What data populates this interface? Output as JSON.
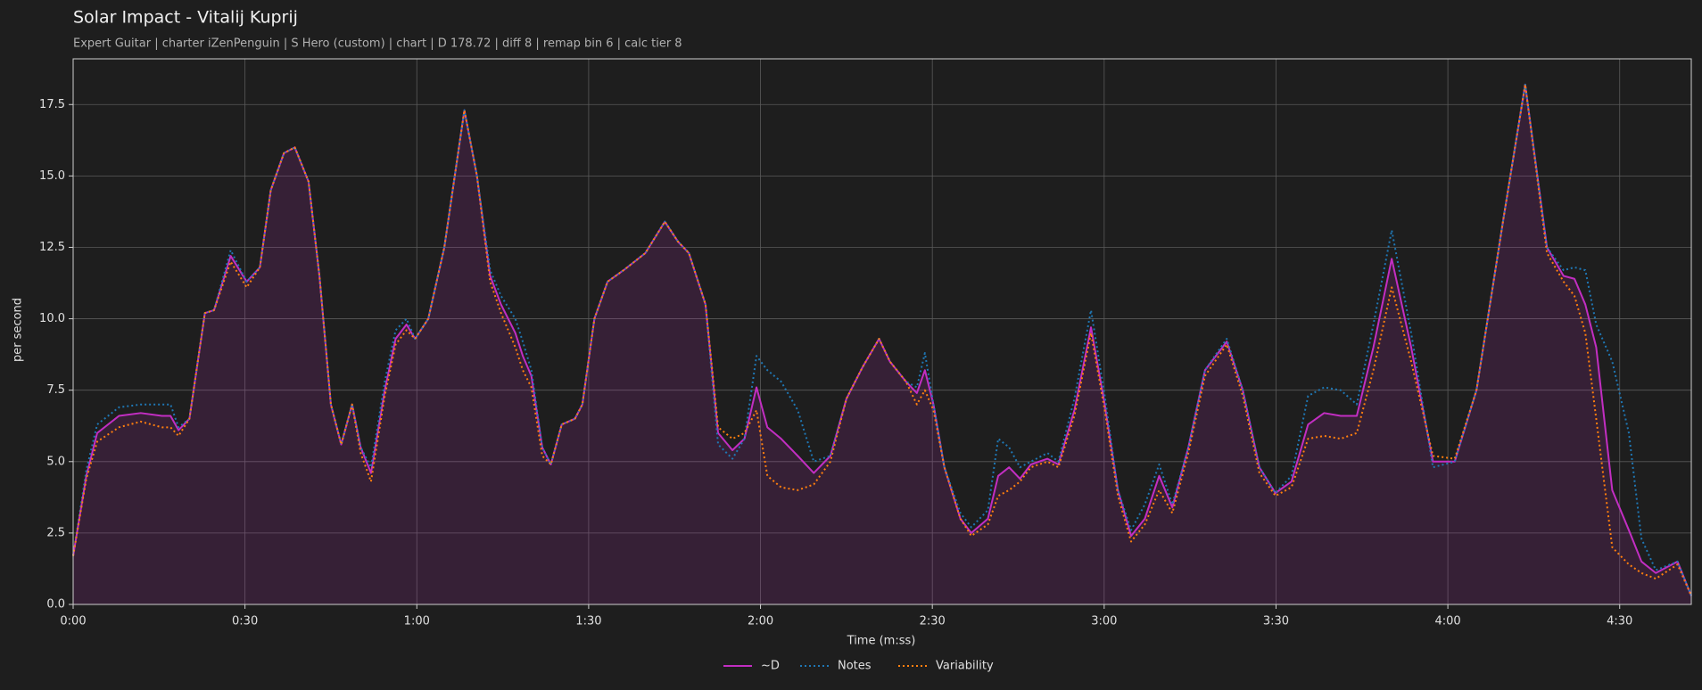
{
  "chart_data": {
    "type": "line",
    "title": "Solar Impact - Vitalij Kuprij",
    "subtitle": "Expert Guitar  |  charter iZenPenguin  |  S Hero (custom)  |  chart  |  D 178.72  |  diff 8  |  remap bin 6  |  calc tier 8",
    "x_label": "Time (m:ss)",
    "y_label": "per second",
    "grid": true,
    "legend": "bottom",
    "xlim": [
      0,
      282.5
    ],
    "ylim": [
      0,
      19.1
    ],
    "xticks": [
      {
        "value": 0,
        "label": "0:00"
      },
      {
        "value": 30,
        "label": "0:30"
      },
      {
        "value": 60,
        "label": "1:00"
      },
      {
        "value": 90,
        "label": "1:30"
      },
      {
        "value": 120,
        "label": "2:00"
      },
      {
        "value": 150,
        "label": "2:30"
      },
      {
        "value": 180,
        "label": "3:00"
      },
      {
        "value": 210,
        "label": "3:30"
      },
      {
        "value": 240,
        "label": "4:00"
      },
      {
        "value": 270,
        "label": "4:30"
      }
    ],
    "yticks": [
      {
        "value": 0,
        "label": "0.0"
      },
      2.5,
      {
        "value": 5,
        "label": "5.0"
      },
      7.5,
      {
        "value": 10,
        "label": "10.0"
      },
      12.5,
      {
        "value": 15,
        "label": "15.0"
      },
      17.5
    ],
    "x": [
      0,
      2.3,
      4.2,
      8,
      11.8,
      15.5,
      17,
      18.4,
      20.3,
      23,
      24.6,
      27.5,
      30.3,
      32.6,
      34.5,
      36.8,
      38.7,
      41.1,
      43,
      45,
      46.8,
      48.7,
      50.2,
      52,
      54.4,
      56.3,
      58.2,
      59.7,
      62,
      64.8,
      68.3,
      70.5,
      72.8,
      74.7,
      77.2,
      78.5,
      80,
      81.9,
      83.4,
      85.3,
      87.6,
      88.9,
      91,
      93.3,
      96.1,
      99.9,
      103.3,
      105.6,
      107.5,
      110.4,
      112.6,
      115.1,
      117.2,
      119.3,
      121.2,
      123.6,
      126.5,
      129.3,
      132.2,
      135,
      137.8,
      140.7,
      142.6,
      145.4,
      147.3,
      148.7,
      150.2,
      152.1,
      154.9,
      156.8,
      159.7,
      161.5,
      163.4,
      165.3,
      167.2,
      170.1,
      172,
      174.8,
      177.7,
      180.1,
      182.4,
      184.7,
      187.1,
      189.6,
      191.9,
      194.7,
      197.6,
      201.4,
      204.2,
      207.1,
      209.9,
      212.7,
      215.6,
      218.4,
      221.3,
      224.1,
      227,
      230.2,
      233.6,
      237.4,
      241.2,
      245,
      249.7,
      253.5,
      257.3,
      260.2,
      262.1,
      264,
      265.9,
      268.7,
      271.6,
      273.8,
      276.3,
      280.1,
      282.5
    ],
    "series": [
      {
        "name": "~D",
        "color": "#c22ec2",
        "style": "solid",
        "fill": true,
        "values": [
          1.7,
          4.5,
          6.0,
          6.6,
          6.7,
          6.6,
          6.6,
          6.1,
          6.5,
          10.2,
          10.3,
          12.2,
          11.3,
          11.8,
          14.5,
          15.8,
          16.0,
          14.8,
          11.5,
          7.0,
          5.6,
          7.0,
          5.5,
          4.6,
          7.5,
          9.3,
          9.8,
          9.3,
          10.0,
          12.5,
          17.3,
          15.0,
          11.5,
          10.5,
          9.5,
          8.7,
          8.0,
          5.5,
          4.9,
          6.3,
          6.5,
          7.0,
          10.0,
          11.3,
          11.7,
          12.3,
          13.4,
          12.7,
          12.3,
          10.5,
          6.0,
          5.4,
          5.8,
          7.6,
          6.2,
          5.8,
          5.2,
          4.6,
          5.2,
          7.2,
          8.3,
          9.3,
          8.5,
          7.8,
          7.4,
          8.2,
          7.0,
          4.8,
          3.0,
          2.5,
          3.0,
          4.5,
          4.8,
          4.4,
          4.9,
          5.1,
          4.9,
          6.8,
          9.7,
          7.0,
          4.0,
          2.4,
          3.0,
          4.5,
          3.4,
          5.5,
          8.2,
          9.2,
          7.5,
          4.8,
          3.9,
          4.3,
          6.3,
          6.7,
          6.6,
          6.6,
          9.0,
          12.1,
          9.0,
          5.0,
          5.0,
          7.5,
          13.5,
          18.2,
          12.5,
          11.5,
          11.4,
          10.5,
          9.0,
          4.0,
          2.6,
          1.5,
          1.1,
          1.5,
          0.3
        ]
      },
      {
        "name": "Notes",
        "color": "#1f77b4",
        "style": "dotted",
        "values": [
          1.7,
          4.7,
          6.3,
          6.9,
          7.0,
          7.0,
          7.0,
          6.2,
          6.5,
          10.2,
          10.3,
          12.4,
          11.3,
          11.8,
          14.5,
          15.8,
          16.0,
          14.8,
          11.5,
          7.0,
          5.6,
          7.0,
          5.5,
          4.8,
          7.8,
          9.6,
          10.0,
          9.3,
          10.0,
          12.5,
          17.3,
          15.0,
          11.7,
          10.8,
          10.0,
          9.2,
          8.2,
          5.5,
          4.9,
          6.3,
          6.5,
          7.0,
          10.0,
          11.3,
          11.7,
          12.3,
          13.4,
          12.7,
          12.3,
          10.5,
          5.6,
          5.1,
          5.8,
          8.7,
          8.2,
          7.8,
          6.8,
          5.0,
          5.2,
          7.2,
          8.3,
          9.3,
          8.5,
          7.8,
          7.6,
          8.8,
          7.0,
          4.8,
          3.2,
          2.7,
          3.3,
          5.8,
          5.5,
          4.8,
          5.0,
          5.3,
          5.0,
          7.2,
          10.3,
          7.3,
          4.0,
          2.6,
          3.5,
          4.9,
          3.5,
          5.5,
          8.2,
          9.3,
          7.5,
          4.8,
          3.9,
          4.5,
          7.3,
          7.6,
          7.5,
          7.0,
          9.8,
          13.1,
          9.5,
          4.8,
          5.0,
          7.5,
          13.5,
          18.2,
          12.5,
          11.7,
          11.8,
          11.7,
          9.8,
          8.5,
          6.0,
          2.3,
          1.2,
          1.5,
          0.3
        ]
      },
      {
        "name": "Variability",
        "color": "#ff7f0e",
        "style": "dotted",
        "values": [
          1.7,
          4.4,
          5.7,
          6.2,
          6.4,
          6.2,
          6.2,
          5.9,
          6.5,
          10.2,
          10.3,
          12.0,
          11.1,
          11.8,
          14.5,
          15.8,
          16.0,
          14.8,
          11.5,
          7.0,
          5.6,
          7.0,
          5.3,
          4.3,
          7.3,
          9.1,
          9.6,
          9.3,
          10.0,
          12.5,
          17.3,
          15.0,
          11.3,
          10.2,
          9.0,
          8.2,
          7.6,
          5.2,
          4.9,
          6.3,
          6.5,
          7.0,
          10.0,
          11.3,
          11.7,
          12.3,
          13.4,
          12.7,
          12.3,
          10.5,
          6.2,
          5.8,
          6.0,
          6.8,
          4.5,
          4.1,
          4.0,
          4.2,
          5.0,
          7.2,
          8.3,
          9.3,
          8.5,
          7.8,
          7.0,
          7.5,
          6.8,
          4.8,
          3.0,
          2.4,
          2.8,
          3.8,
          4.0,
          4.3,
          4.8,
          5.0,
          4.8,
          6.6,
          9.5,
          6.8,
          3.8,
          2.2,
          2.8,
          4.0,
          3.2,
          5.3,
          8.0,
          9.1,
          7.3,
          4.6,
          3.8,
          4.1,
          5.8,
          5.9,
          5.8,
          6.0,
          8.2,
          11.1,
          8.5,
          5.2,
          5.1,
          7.5,
          13.5,
          18.2,
          12.3,
          11.3,
          10.8,
          9.5,
          6.5,
          2.0,
          1.4,
          1.1,
          0.9,
          1.4,
          0.3
        ]
      }
    ]
  }
}
